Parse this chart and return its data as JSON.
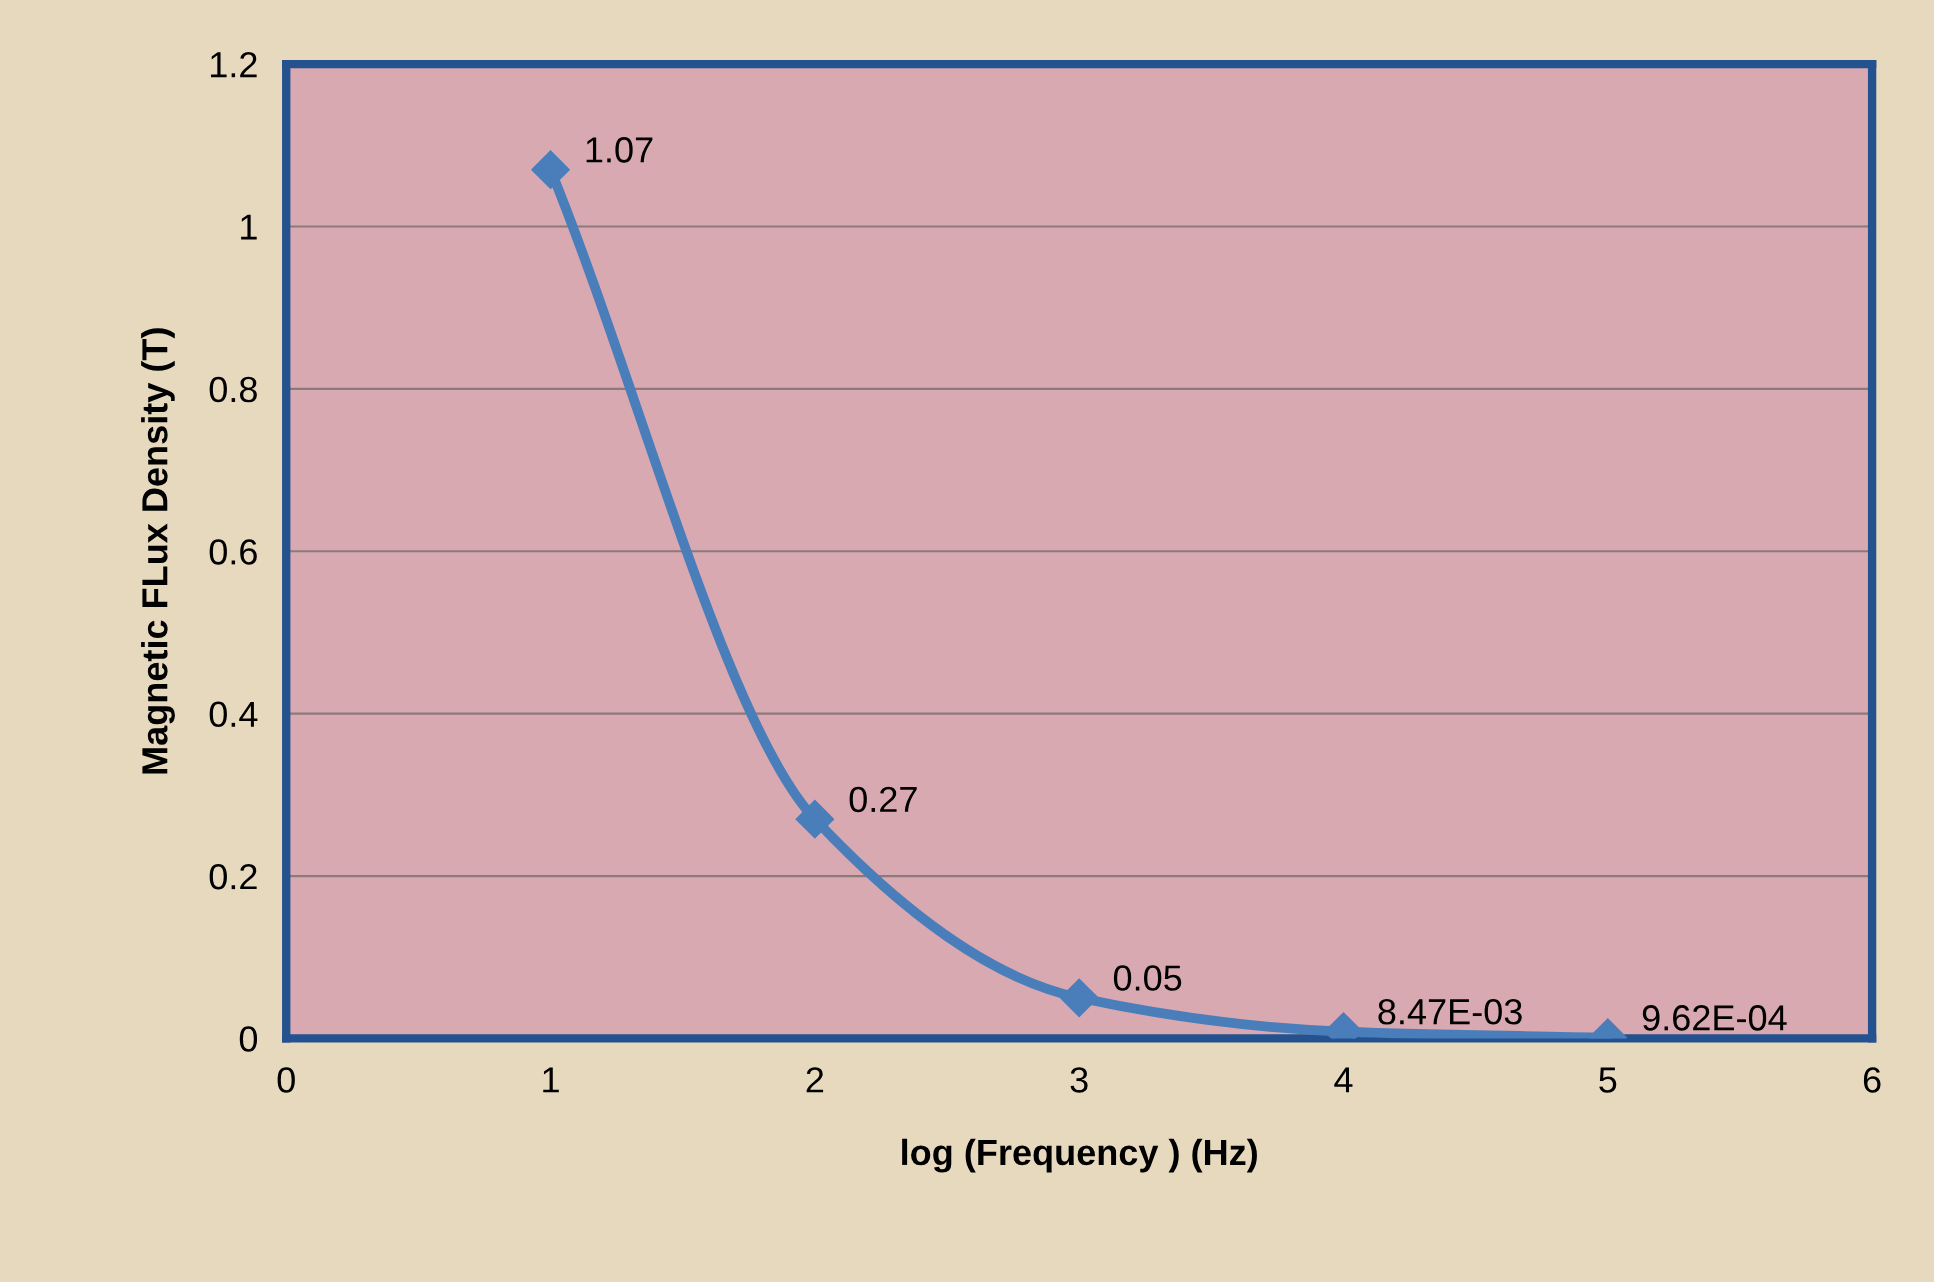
{
  "chart_data": {
    "type": "line",
    "xlabel": "log (Frequency ) (Hz)",
    "ylabel": "Magnetic FLux Density (T)",
    "x": [
      1,
      2,
      3,
      4,
      5
    ],
    "series": [
      {
        "color": "#4a7ebb",
        "values": [
          1.07,
          0.27,
          0.05,
          0.00847,
          0.000962
        ],
        "value_labels": [
          "1.07",
          "0.27",
          "0.05",
          "8.47E-03",
          "9.62E-04"
        ]
      }
    ],
    "xlim": [
      0,
      6
    ],
    "xticks": [
      0,
      1,
      2,
      3,
      4,
      5,
      6
    ],
    "ylim": [
      0,
      1.2
    ],
    "yticks": [
      0,
      0.2,
      0.4,
      0.6,
      0.8,
      1,
      1.2
    ],
    "grid": "y",
    "marker": "diamond",
    "line_style": "solid"
  }
}
